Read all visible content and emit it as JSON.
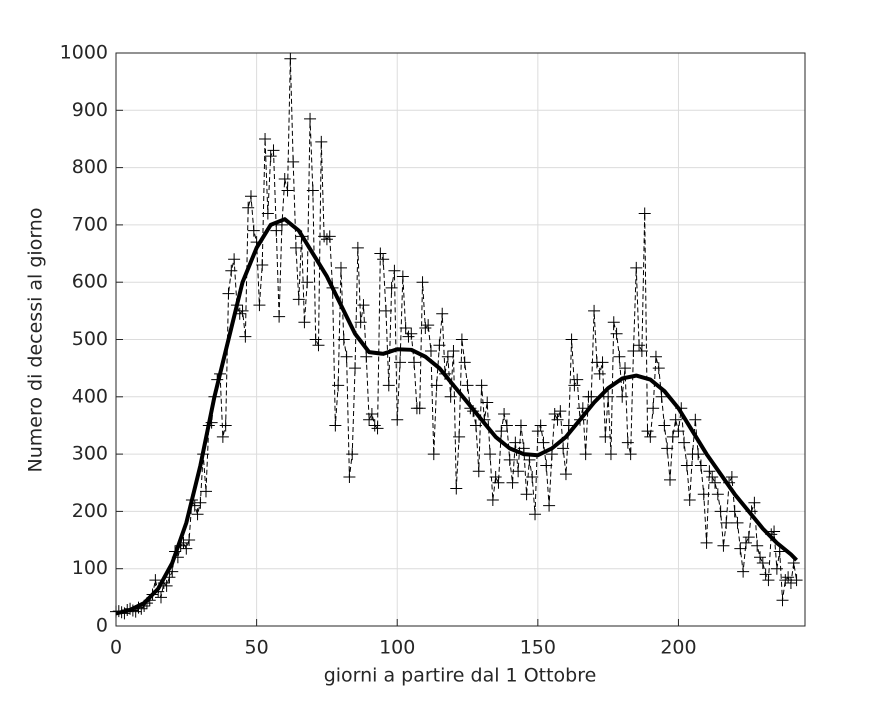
{
  "chart_data": {
    "type": "line",
    "xlabel": "giorni a partire dal 1 Ottobre",
    "ylabel": "Numero di decessi al giorno",
    "xlim": [
      0,
      245
    ],
    "ylim": [
      0,
      1000
    ],
    "xticks": [
      0,
      50,
      100,
      150,
      200
    ],
    "yticks": [
      0,
      100,
      200,
      300,
      400,
      500,
      600,
      700,
      800,
      900,
      1000
    ],
    "grid": true,
    "series": [
      {
        "color": "#000000",
        "style": "dashed-plus",
        "x": [
          0,
          1,
          2,
          3,
          4,
          5,
          6,
          7,
          8,
          9,
          10,
          11,
          12,
          13,
          14,
          15,
          16,
          17,
          18,
          19,
          20,
          21,
          22,
          23,
          24,
          25,
          26,
          27,
          28,
          29,
          30,
          31,
          32,
          33,
          34,
          35,
          36,
          37,
          38,
          39,
          40,
          41,
          42,
          43,
          44,
          45,
          46,
          47,
          48,
          49,
          50,
          51,
          52,
          53,
          54,
          55,
          56,
          57,
          58,
          59,
          60,
          61,
          62,
          63,
          64,
          65,
          66,
          67,
          68,
          69,
          70,
          71,
          72,
          73,
          74,
          75,
          76,
          77,
          78,
          79,
          80,
          81,
          82,
          83,
          84,
          85,
          86,
          87,
          88,
          89,
          90,
          91,
          92,
          93,
          94,
          95,
          96,
          97,
          98,
          99,
          100,
          101,
          102,
          103,
          104,
          105,
          106,
          107,
          108,
          109,
          110,
          111,
          112,
          113,
          114,
          115,
          116,
          117,
          118,
          119,
          120,
          121,
          122,
          123,
          124,
          125,
          126,
          127,
          128,
          129,
          130,
          131,
          132,
          133,
          134,
          135,
          136,
          137,
          138,
          139,
          140,
          141,
          142,
          143,
          144,
          145,
          146,
          147,
          148,
          149,
          150,
          151,
          152,
          153,
          154,
          155,
          156,
          157,
          158,
          159,
          160,
          161,
          162,
          163,
          164,
          165,
          166,
          167,
          168,
          169,
          170,
          171,
          172,
          173,
          174,
          175,
          176,
          177,
          178,
          179,
          180,
          181,
          182,
          183,
          184,
          185,
          186,
          187,
          188,
          189,
          190,
          191,
          192,
          193,
          194,
          195,
          196,
          197,
          198,
          199,
          200,
          201,
          202,
          203,
          204,
          205,
          206,
          207,
          208,
          209,
          210,
          211,
          212,
          213,
          214,
          215,
          216,
          217,
          218,
          219,
          220,
          221,
          222,
          223,
          224,
          225,
          226,
          227,
          228,
          229,
          230,
          231,
          232,
          233,
          234,
          235,
          236,
          237,
          238,
          239,
          240,
          241,
          242
        ],
        "values": [
          25,
          26,
          24,
          22,
          28,
          30,
          27,
          25,
          32,
          30,
          35,
          40,
          45,
          55,
          80,
          60,
          50,
          75,
          70,
          85,
          95,
          130,
          120,
          140,
          145,
          135,
          150,
          220,
          210,
          195,
          215,
          300,
          235,
          350,
          355,
          400,
          430,
          440,
          330,
          350,
          580,
          620,
          640,
          560,
          545,
          550,
          505,
          730,
          750,
          690,
          670,
          560,
          630,
          850,
          720,
          820,
          830,
          690,
          540,
          700,
          780,
          760,
          990,
          810,
          660,
          570,
          680,
          530,
          600,
          885,
          760,
          500,
          490,
          845,
          680,
          675,
          680,
          590,
          350,
          420,
          625,
          500,
          470,
          260,
          300,
          450,
          660,
          530,
          560,
          470,
          360,
          370,
          350,
          345,
          650,
          640,
          550,
          420,
          590,
          620,
          360,
          460,
          610,
          520,
          505,
          510,
          460,
          380,
          380,
          600,
          520,
          525,
          480,
          300,
          420,
          490,
          545,
          440,
          470,
          400,
          480,
          240,
          330,
          500,
          460,
          420,
          380,
          375,
          350,
          270,
          420,
          360,
          390,
          300,
          220,
          260,
          250,
          340,
          370,
          350,
          290,
          250,
          320,
          270,
          350,
          310,
          230,
          290,
          260,
          195,
          340,
          350,
          320,
          280,
          210,
          300,
          370,
          360,
          375,
          310,
          265,
          350,
          500,
          420,
          430,
          360,
          380,
          300,
          400,
          400,
          550,
          460,
          440,
          460,
          330,
          400,
          300,
          530,
          510,
          470,
          400,
          450,
          320,
          300,
          480,
          625,
          490,
          480,
          720,
          340,
          330,
          380,
          470,
          450,
          400,
          350,
          310,
          255,
          330,
          360,
          340,
          380,
          320,
          280,
          220,
          300,
          360,
          300,
          280,
          230,
          145,
          270,
          260,
          250,
          230,
          200,
          140,
          180,
          250,
          260,
          200,
          180,
          135,
          95,
          145,
          155,
          200,
          215,
          140,
          120,
          110,
          90,
          80,
          160,
          165,
          100,
          130,
          45,
          80,
          85,
          75,
          110,
          80
        ]
      },
      {
        "color": "#000000",
        "style": "thick",
        "x": [
          0,
          5,
          10,
          15,
          20,
          25,
          30,
          35,
          40,
          45,
          50,
          55,
          60,
          65,
          70,
          75,
          80,
          85,
          90,
          95,
          100,
          105,
          110,
          115,
          120,
          125,
          130,
          135,
          140,
          145,
          150,
          155,
          160,
          165,
          170,
          175,
          180,
          185,
          190,
          195,
          200,
          205,
          210,
          215,
          220,
          225,
          230,
          235,
          240,
          242
        ],
        "values": [
          22,
          28,
          40,
          65,
          110,
          180,
          280,
          400,
          500,
          600,
          660,
          700,
          710,
          690,
          650,
          610,
          560,
          510,
          478,
          475,
          483,
          482,
          470,
          450,
          420,
          390,
          360,
          330,
          310,
          300,
          298,
          310,
          330,
          360,
          390,
          415,
          432,
          437,
          430,
          410,
          380,
          340,
          300,
          265,
          230,
          200,
          170,
          145,
          125,
          115
        ]
      }
    ]
  }
}
